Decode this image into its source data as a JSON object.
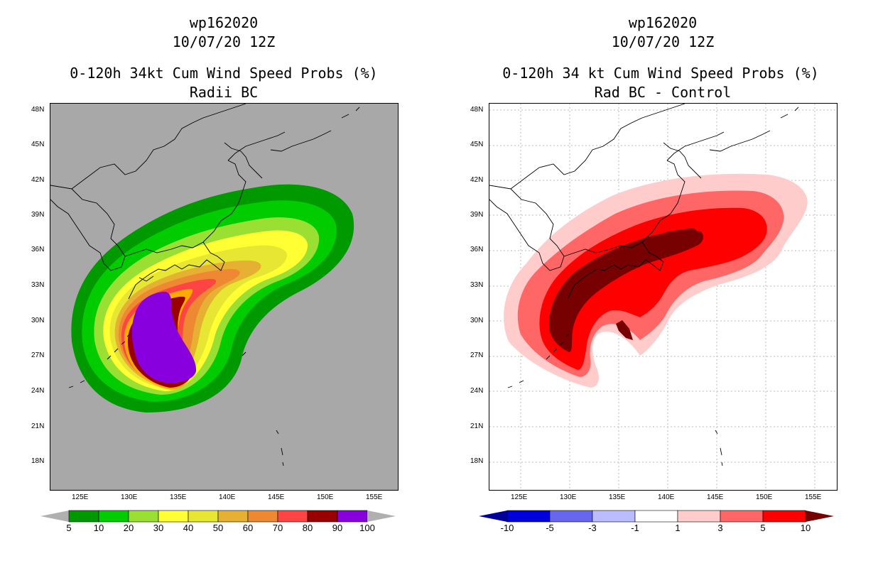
{
  "left_panel": {
    "title_line1": "wp162020",
    "title_line2": "10/07/20 12Z",
    "title_line3": "0-120h 34kt Cum Wind Speed Probs (%)",
    "title_line4": "Radii BC",
    "lat_labels": [
      "48N",
      "45N",
      "42N",
      "39N",
      "36N",
      "33N",
      "30N",
      "27N",
      "24N",
      "21N",
      "18N"
    ],
    "lon_labels": [
      "125E",
      "130E",
      "135E",
      "140E",
      "145E",
      "150E",
      "155E"
    ],
    "colorbar": {
      "labels": [
        "5",
        "10",
        "20",
        "30",
        "40",
        "50",
        "60",
        "70",
        "80",
        "90",
        "100"
      ],
      "colors": [
        "#009900",
        "#00cc00",
        "#99e033",
        "#ffff33",
        "#e6e633",
        "#e6b033",
        "#ee8833",
        "#ff4444",
        "#990000",
        "#8800dd"
      ],
      "under_color": "#b0b0b0",
      "over_color": "#b0b0b0"
    },
    "map_background": "#a8a8a8"
  },
  "right_panel": {
    "title_line1": "wp162020",
    "title_line2": "10/07/20 12Z",
    "title_line3": "0-120h 34 kt Cum Wind Speed Probs (%)",
    "title_line4": "Rad BC - Control",
    "lat_labels": [
      "48N",
      "45N",
      "42N",
      "39N",
      "36N",
      "33N",
      "30N",
      "27N",
      "24N",
      "21N",
      "18N"
    ],
    "lon_labels": [
      "125E",
      "130E",
      "135E",
      "140E",
      "145E",
      "150E",
      "155E"
    ],
    "colorbar": {
      "labels": [
        "-10",
        "-5",
        "-3",
        "-1",
        "1",
        "3",
        "5",
        "10"
      ],
      "colors": [
        "#0000dd",
        "#6666ee",
        "#bbbbff",
        "#ffffff",
        "#ffcccc",
        "#ff6666",
        "#ff0000"
      ],
      "under_color": "#000099",
      "over_color": "#770000"
    },
    "map_background": "#ffffff"
  }
}
